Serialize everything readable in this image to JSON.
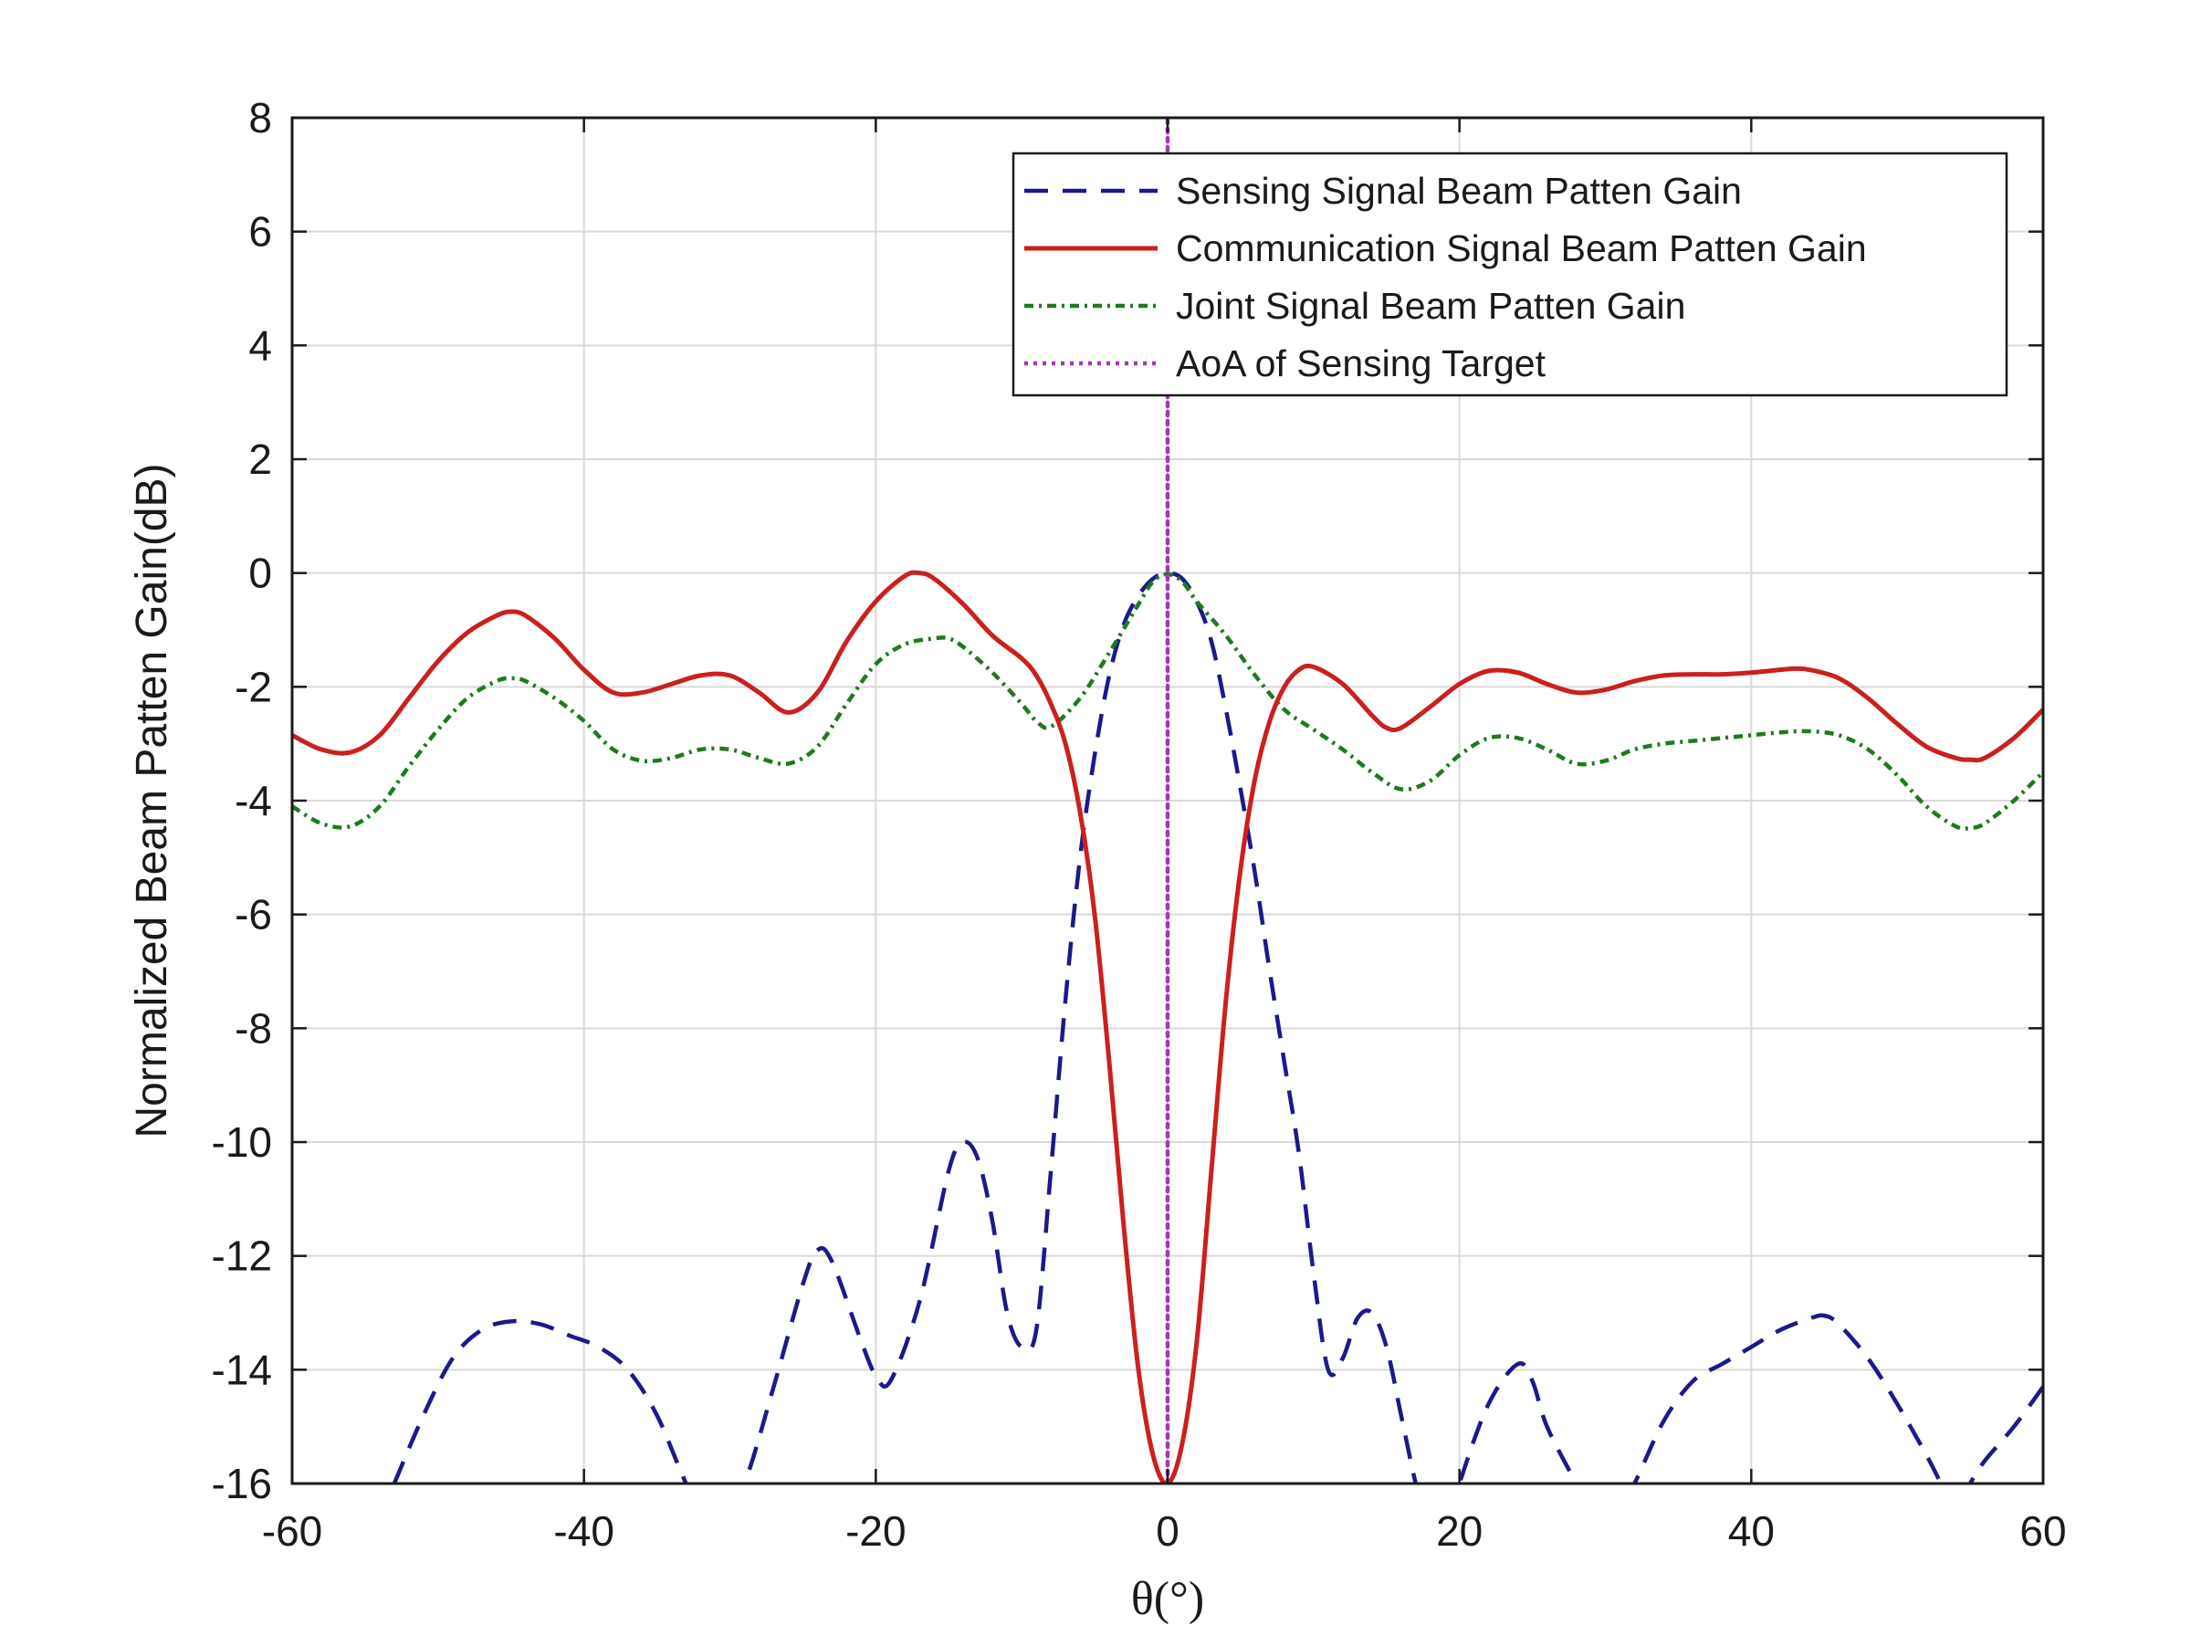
{
  "chart_data": {
    "type": "line",
    "xlabel": "θ(°)",
    "ylabel": "Normalized Beam Patten Gain(dB)",
    "xlim": [
      -60,
      60
    ],
    "ylim": [
      -16,
      8
    ],
    "xticks": [
      -60,
      -40,
      -20,
      0,
      20,
      40,
      60
    ],
    "yticks": [
      -16,
      -14,
      -12,
      -10,
      -8,
      -6,
      -4,
      -2,
      0,
      2,
      4,
      6,
      8
    ],
    "xtick_labels": [
      "-60",
      "-40",
      "-20",
      "0",
      "20",
      "40",
      "60"
    ],
    "ytick_labels": [
      "-16",
      "-14",
      "-12",
      "-10",
      "-8",
      "-6",
      "-4",
      "-2",
      "0",
      "2",
      "4",
      "6",
      "8"
    ],
    "grid": true,
    "legend_position": "top-right",
    "series": [
      {
        "name": "Sensing Signal Beam Patten Gain",
        "color": "#1a1a8c",
        "style": "dashed",
        "x": [
          -53,
          -51,
          -49,
          -47,
          -45,
          -43,
          -41,
          -39,
          -37,
          -35,
          -33,
          -31,
          -29,
          -27,
          -25,
          -24,
          -23,
          -21,
          -20,
          -19,
          -17,
          -15,
          -14,
          -13,
          -12,
          -11,
          -10,
          -9,
          -8,
          -7,
          -6,
          -5,
          -4,
          -3,
          -2,
          -1,
          0,
          1,
          2,
          3,
          4,
          5,
          6,
          7,
          8,
          9,
          10,
          11,
          12,
          13,
          14,
          15,
          16,
          17,
          18,
          19,
          20,
          22,
          24,
          25,
          26,
          28,
          30,
          32,
          34,
          36,
          38,
          40,
          42,
          44,
          45,
          46,
          48,
          50,
          52,
          53,
          54,
          55,
          56,
          58,
          60
        ],
        "y": [
          -16,
          -14.8,
          -13.8,
          -13.3,
          -13.15,
          -13.2,
          -13.4,
          -13.6,
          -14.0,
          -14.8,
          -16,
          -17,
          -16,
          -14.3,
          -12.5,
          -11.9,
          -12.1,
          -13.5,
          -14.1,
          -14.2,
          -12.8,
          -10.5,
          -10.0,
          -10.3,
          -11.4,
          -13.0,
          -13.6,
          -13.3,
          -10.5,
          -7.5,
          -5.0,
          -3.2,
          -1.8,
          -0.9,
          -0.4,
          -0.1,
          0,
          -0.1,
          -0.5,
          -1.2,
          -2.4,
          -3.8,
          -5.3,
          -7.0,
          -8.6,
          -10.2,
          -12.3,
          -14.0,
          -13.8,
          -13.1,
          -13.0,
          -13.6,
          -14.8,
          -16,
          -17,
          -17,
          -16,
          -14.6,
          -13.9,
          -14.2,
          -15.0,
          -16,
          -17,
          -16,
          -14.9,
          -14.2,
          -13.9,
          -13.6,
          -13.3,
          -13.1,
          -13.05,
          -13.2,
          -13.8,
          -14.6,
          -15.5,
          -16,
          -16.5,
          -16,
          -15.6,
          -15.0,
          -14.3
        ]
      },
      {
        "name": "Communication Signal Beam Patten Gain",
        "color": "#cc1f1f",
        "style": "solid",
        "x": [
          -60,
          -58,
          -56,
          -54,
          -52,
          -50,
          -48,
          -46,
          -45,
          -44,
          -42,
          -40,
          -38,
          -36,
          -34,
          -32,
          -30,
          -28,
          -26,
          -24,
          -22,
          -20,
          -18,
          -17,
          -16,
          -14,
          -12,
          -10,
          -9,
          -8,
          -7,
          -6,
          -5,
          -4,
          -3,
          -2,
          -1,
          0,
          1,
          2,
          3,
          4,
          5,
          6,
          7,
          8,
          9,
          10,
          12,
          14,
          15,
          16,
          18,
          20,
          22,
          24,
          26,
          28,
          30,
          32,
          34,
          36,
          38,
          40,
          42,
          43,
          44,
          46,
          48,
          50,
          52,
          54,
          55,
          56,
          58,
          60
        ],
        "y": [
          -2.85,
          -3.1,
          -3.15,
          -2.85,
          -2.2,
          -1.55,
          -1.05,
          -0.75,
          -0.68,
          -0.75,
          -1.15,
          -1.7,
          -2.1,
          -2.1,
          -1.95,
          -1.8,
          -1.8,
          -2.1,
          -2.45,
          -2.1,
          -1.2,
          -0.5,
          -0.05,
          0,
          -0.1,
          -0.55,
          -1.1,
          -1.5,
          -1.8,
          -2.3,
          -3.0,
          -4.2,
          -6.0,
          -8.6,
          -11.5,
          -14.0,
          -15.5,
          -16,
          -15.3,
          -13.5,
          -10.5,
          -7.5,
          -5.2,
          -3.6,
          -2.6,
          -2.0,
          -1.7,
          -1.65,
          -1.95,
          -2.5,
          -2.72,
          -2.72,
          -2.35,
          -1.95,
          -1.72,
          -1.75,
          -1.95,
          -2.1,
          -2.05,
          -1.9,
          -1.8,
          -1.78,
          -1.78,
          -1.75,
          -1.7,
          -1.68,
          -1.7,
          -1.85,
          -2.2,
          -2.65,
          -3.05,
          -3.25,
          -3.28,
          -3.25,
          -2.9,
          -2.4
        ]
      },
      {
        "name": "Joint Signal Beam Patten Gain",
        "color": "#1f7a1f",
        "style": "dashdot",
        "x": [
          -60,
          -58,
          -56,
          -54,
          -52,
          -50,
          -48,
          -46,
          -45,
          -44,
          -42,
          -40,
          -38,
          -36,
          -34,
          -32,
          -30,
          -28,
          -26,
          -24,
          -22,
          -20,
          -18,
          -16,
          -15,
          -14,
          -12,
          -10,
          -9,
          -8,
          -6,
          -4,
          -2,
          -1,
          0,
          1,
          2,
          4,
          6,
          8,
          10,
          12,
          14,
          16,
          18,
          20,
          22,
          24,
          26,
          28,
          30,
          32,
          34,
          36,
          38,
          40,
          42,
          44,
          46,
          48,
          50,
          52,
          54,
          55,
          56,
          58,
          60
        ],
        "y": [
          -4.1,
          -4.4,
          -4.45,
          -4.1,
          -3.4,
          -2.75,
          -2.2,
          -1.9,
          -1.85,
          -1.9,
          -2.2,
          -2.6,
          -3.1,
          -3.3,
          -3.25,
          -3.1,
          -3.1,
          -3.25,
          -3.35,
          -3.05,
          -2.3,
          -1.6,
          -1.25,
          -1.15,
          -1.15,
          -1.3,
          -1.75,
          -2.3,
          -2.6,
          -2.7,
          -2.2,
          -1.4,
          -0.55,
          -0.15,
          -0.02,
          -0.15,
          -0.5,
          -1.1,
          -1.8,
          -2.4,
          -2.75,
          -3.1,
          -3.5,
          -3.8,
          -3.65,
          -3.2,
          -2.9,
          -2.9,
          -3.1,
          -3.35,
          -3.3,
          -3.1,
          -3.0,
          -2.95,
          -2.9,
          -2.85,
          -2.8,
          -2.78,
          -2.85,
          -3.1,
          -3.55,
          -4.1,
          -4.45,
          -4.48,
          -4.4,
          -4.0,
          -3.5
        ]
      },
      {
        "name": "AoA of Sensing Target",
        "color": "#a03ab0",
        "style": "dotted",
        "x": [
          0,
          0
        ],
        "y": [
          -16,
          8
        ]
      }
    ]
  }
}
